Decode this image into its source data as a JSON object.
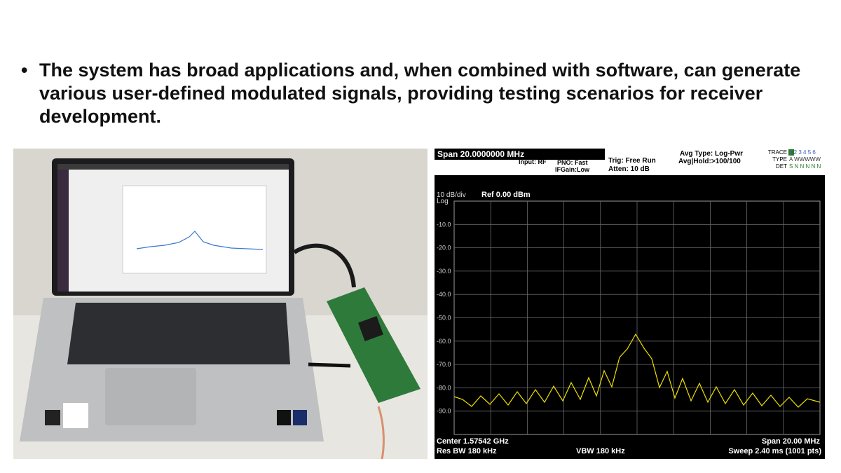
{
  "slide": {
    "bullet": "The system has broad applications and, when combined with software, can generate various user-defined modulated signals, providing testing scenarios for receiver development."
  },
  "analyzer": {
    "span_header": "Span  20.0000000 MHz",
    "input": "Input: RF",
    "pno": "PNO: Fast",
    "ifgain": "IFGain:Low",
    "trig": "Trig: Free Run",
    "atten": "Atten: 10 dB",
    "avg_type": "Avg Type: Log-Pwr",
    "avg_hold": "Avg|Hold:>100/100",
    "trace_label": "TRACE",
    "type_label": "TYPE",
    "det_label": "DET",
    "trace_nums": "1 2 3 4 5 6",
    "type_val": "A WWWWW",
    "det_val": "S N N N N N",
    "scale": "10 dB/div",
    "log": "Log",
    "ref": "Ref 0.00 dBm",
    "levels": [
      "-10.0",
      "-20.0",
      "-30.0",
      "-40.0",
      "-50.0",
      "-60.0",
      "-70.0",
      "-80.0",
      "-90.0"
    ],
    "center": "Center 1.57542 GHz",
    "span": "Span 20.00 MHz",
    "rbw": "Res BW  180 kHz",
    "vbw": "VBW  180 kHz",
    "sweep": "Sweep  2.40 ms (1001 pts)"
  }
}
